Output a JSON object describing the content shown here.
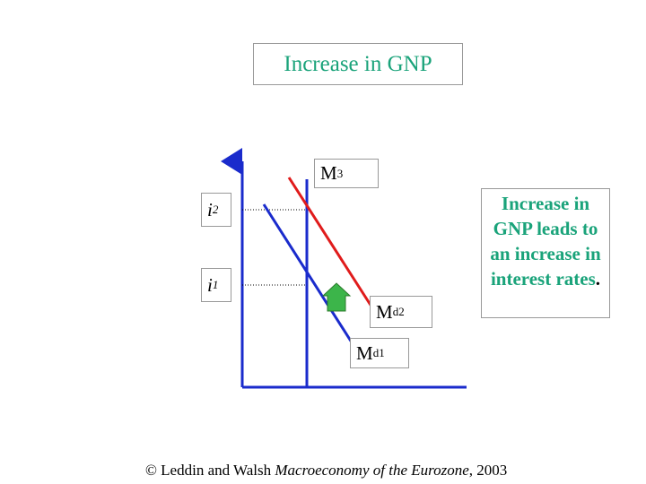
{
  "title": "Increase in GNP",
  "labels": {
    "m3_base": "M",
    "m3_sup": "3",
    "i2_base": "i",
    "i2_sub": "2",
    "i1_base": "i",
    "i1_sub": "1",
    "md2_base": "M",
    "md2_sup": "d",
    "md2_sub": "2",
    "md1_base": "M",
    "md1_sup": "d",
    "md1_sub": "1"
  },
  "note": {
    "text": "Increase in GNP leads to an increase in interest rates",
    "period": "."
  },
  "footer": {
    "prefix": "© Leddin and Walsh ",
    "book": "Macroeconomy of the Eurozone",
    "suffix": ", 2003"
  },
  "colors": {
    "money_supply": "#1a2bcc",
    "md1_curve": "#1a2bcc",
    "md2_curve": "#e01b1b",
    "arrow": "#3cb54a",
    "axis": "#1a2bcc",
    "text_accent": "#1aa37a"
  }
}
